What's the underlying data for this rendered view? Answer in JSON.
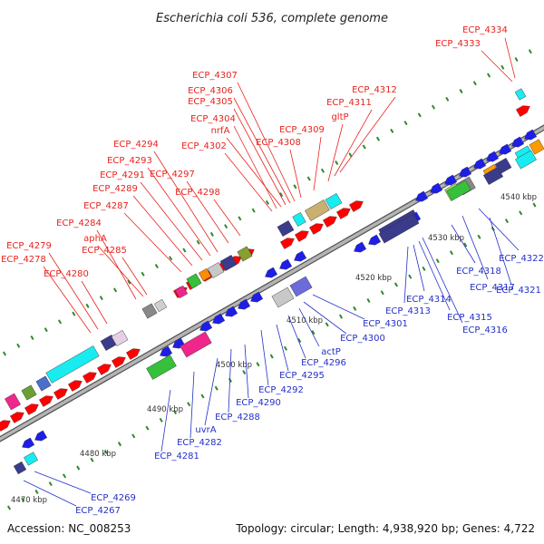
{
  "title": "Escherichia coli 536, complete genome",
  "footer": {
    "accession": "Accession: NC_008253",
    "topology": "Topology: circular; Length: 4,938,920 bp; Genes: 4,722"
  },
  "colors": {
    "forward_label": "#e8231d",
    "reverse_label": "#2330c8",
    "forward_gene": "#ff0000",
    "reverse_gene": "#1e1ee6",
    "backbone": "#8f8f8f",
    "tick": "#2c8a2c"
  },
  "kbp_marks": [
    {
      "pos": 4470,
      "label": "4470 kbp"
    },
    {
      "pos": 4480,
      "label": "4480 kbp"
    },
    {
      "pos": 4490,
      "label": "4490 kbp"
    },
    {
      "pos": 4500,
      "label": "4500 kbp"
    },
    {
      "pos": 4510,
      "label": "4510 kbp"
    },
    {
      "pos": 4520,
      "label": "4520 kbp"
    },
    {
      "pos": 4530,
      "label": "4530 kbp"
    },
    {
      "pos": 4540,
      "label": "4540 kbp"
    }
  ],
  "forward_genes": [
    "ECP_4334",
    "ECP_4333",
    "ECP_4312",
    "ECP_4311",
    "gltP",
    "ECP_4309",
    "ECP_4308",
    "ECP_4307",
    "ECP_4306",
    "ECP_4305",
    "nrfA",
    "ECP_4304",
    "ECP_4302",
    "ECP_4298",
    "ECP_4297",
    "ECP_4294",
    "ECP_4293",
    "ECP_4291",
    "ECP_4289",
    "ECP_4287",
    "ECP_4285",
    "aphA",
    "ECP_4284",
    "ECP_4280",
    "ECP_4279",
    "ECP_4278"
  ],
  "reverse_genes": [
    "ECP_4322",
    "ECP_4318",
    "ECP_4317",
    "ECP_4321",
    "ECP_4314",
    "ECP_4313",
    "ECP_4315",
    "ECP_4316",
    "ECP_4301",
    "ECP_4300",
    "actP",
    "ECP_4296",
    "ECP_4295",
    "ECP_4292",
    "ECP_4290",
    "ECP_4288",
    "uvrA",
    "ECP_4282",
    "ECP_4281",
    "ECP_4269",
    "ECP_4267"
  ]
}
